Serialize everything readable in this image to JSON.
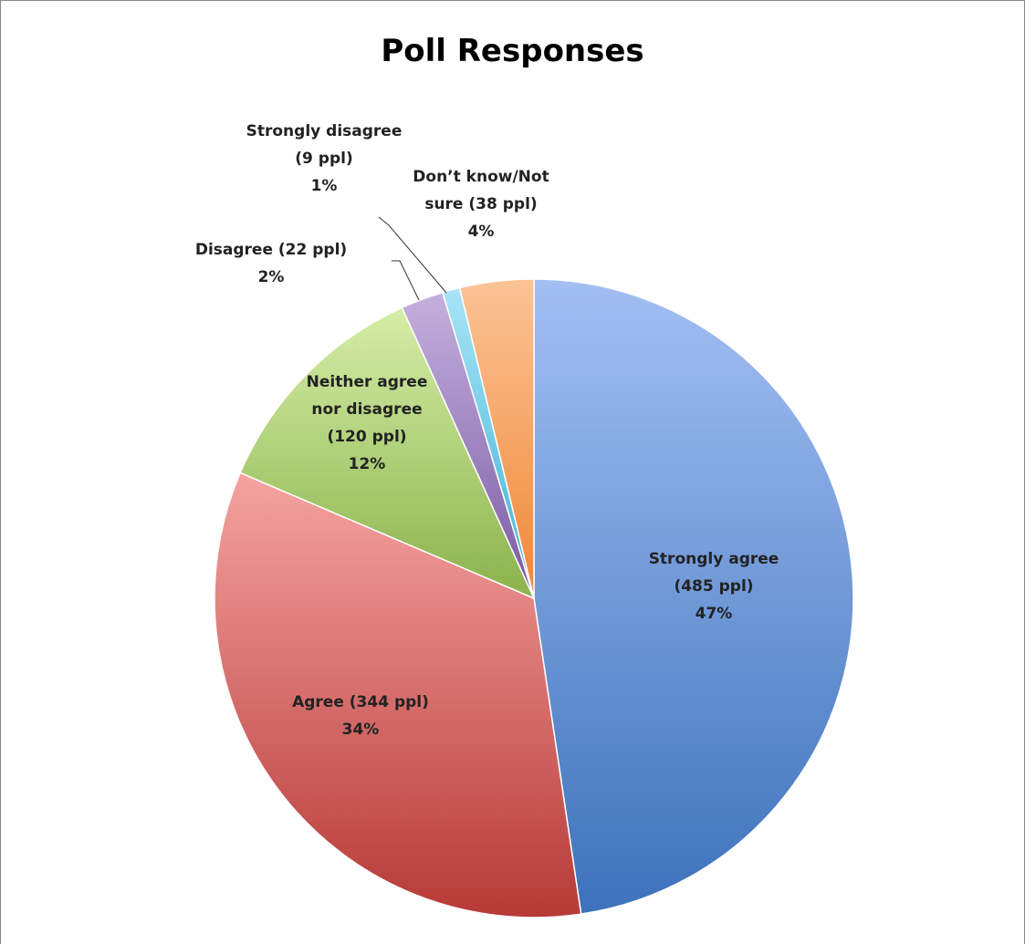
{
  "chart_data": {
    "type": "pie",
    "title": "Poll Responses",
    "slices": [
      {
        "name": "Strongly agree",
        "count": 485,
        "percent": 47,
        "color_light": "#a3bff3",
        "color_dark": "#3d72bb",
        "label_lines": [
          "Strongly agree",
          "(485 ppl)",
          "47%"
        ]
      },
      {
        "name": "Agree",
        "count": 344,
        "percent": 34,
        "color_light": "#f5a3a1",
        "color_dark": "#b63a37",
        "label_lines": [
          "Agree (344 ppl)",
          "34%"
        ]
      },
      {
        "name": "Neither agree nor disagree",
        "count": 120,
        "percent": 12,
        "color_light": "#d5eea8",
        "color_dark": "#8bb24c",
        "label_lines": [
          "Neither agree",
          "nor disagree",
          "(120 ppl)",
          "12%"
        ]
      },
      {
        "name": "Disagree",
        "count": 22,
        "percent": 2,
        "color_light": "#c4b0dd",
        "color_dark": "#7a5aa3",
        "label_lines": [
          "Disagree (22 ppl)",
          "2%"
        ]
      },
      {
        "name": "Strongly disagree",
        "count": 9,
        "percent": 1,
        "color_light": "#a7e4f5",
        "color_dark": "#3fb2d7",
        "label_lines": [
          "Strongly disagree",
          "(9 ppl)",
          "1%"
        ]
      },
      {
        "name": "Don’t know/Not sure",
        "count": 38,
        "percent": 4,
        "color_light": "#fbc396",
        "color_dark": "#f08737",
        "label_lines": [
          "Don’t know/Not",
          "sure (38 ppl)",
          "4%"
        ]
      }
    ]
  }
}
